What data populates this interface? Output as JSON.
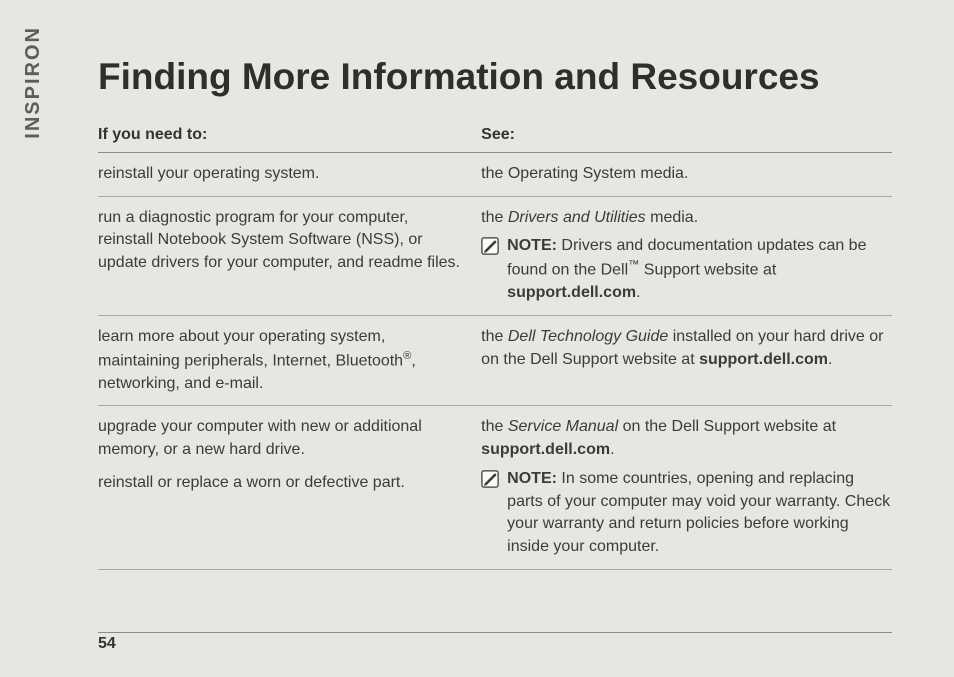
{
  "brand_tab": "INSPIRON",
  "page_number": "54",
  "title": "Finding More Information and Resources",
  "headers": {
    "need": "If you need to:",
    "see": "See:"
  },
  "rows": [
    {
      "need_html": "reinstall your operating system.",
      "see_html": "the Operating System media."
    },
    {
      "need_html": "run a diagnostic program for your computer, reinstall Notebook System Software (NSS), or update drivers for your computer, and readme files.",
      "see_html": "the <em class=\"it\">Drivers and Utilities</em> media.",
      "note_html": "<span class=\"b\">NOTE:</span> Drivers and documentation updates can be found on the Dell<span class=\"tm\">™</span> Support website at <span class=\"b\">support.dell.com</span>."
    },
    {
      "need_html": "learn more about your operating system, maintaining peripherals, Internet, Bluetooth<span class=\"reg\">®</span>, networking, and e-mail.",
      "see_html": "the <em class=\"it\">Dell Technology Guide</em> installed on your hard drive or on the Dell Support website at <span class=\"b\">support.dell.com</span>."
    },
    {
      "need_html": "upgrade your computer with new or additional memory, or a new hard drive.",
      "need2_html": "reinstall or replace a worn or defective part.",
      "see_html": "the <em class=\"it\">Service Manual</em> on the Dell Support website at <span class=\"b\">support.dell.com</span>.",
      "note_html": "<span class=\"b\">NOTE:</span> In some countries, opening and replacing parts of your computer may void your warranty. Check your warranty and return policies before working inside your computer."
    }
  ]
}
